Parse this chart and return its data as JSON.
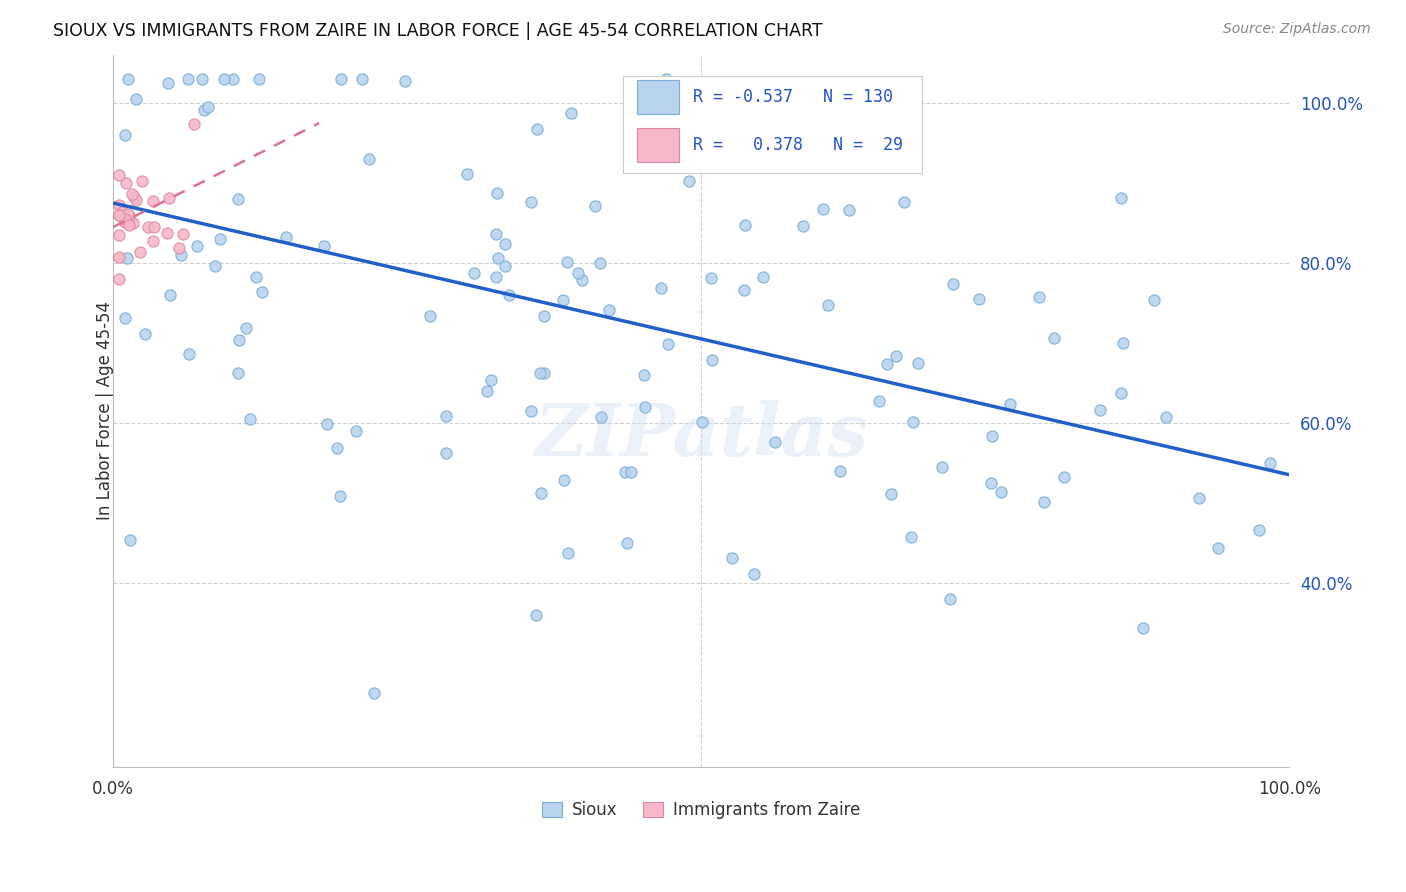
{
  "title": "SIOUX VS IMMIGRANTS FROM ZAIRE IN LABOR FORCE | AGE 45-54 CORRELATION CHART",
  "source": "Source: ZipAtlas.com",
  "ylabel": "In Labor Force | Age 45-54",
  "xlim": [
    0,
    1
  ],
  "ylim": [
    0.17,
    1.06
  ],
  "yticks": [
    0.4,
    0.6,
    0.8,
    1.0
  ],
  "ytick_labels": [
    "40.0%",
    "60.0%",
    "80.0%",
    "100.0%"
  ],
  "blue_fill": "#b8d4ee",
  "blue_edge": "#7aaed4",
  "pink_fill": "#f5b8c8",
  "pink_edge": "#e088a0",
  "trend_blue_color": "#2060c8",
  "trend_pink_color": "#e07090",
  "legend_R_blue": "-0.537",
  "legend_N_blue": "130",
  "legend_R_pink": "0.378",
  "legend_N_pink": "29",
  "blue_trend_x0": 0.0,
  "blue_trend_y0": 0.875,
  "blue_trend_x1": 1.0,
  "blue_trend_y1": 0.535,
  "pink_trend_x0": 0.0,
  "pink_trend_y0": 0.845,
  "pink_trend_x1": 0.175,
  "pink_trend_y1": 0.975,
  "watermark": "ZIPatlas",
  "bg_color": "#ffffff",
  "grid_color": "#d0d0d0",
  "marker_size": 65,
  "n_blue": 130,
  "n_pink": 29
}
